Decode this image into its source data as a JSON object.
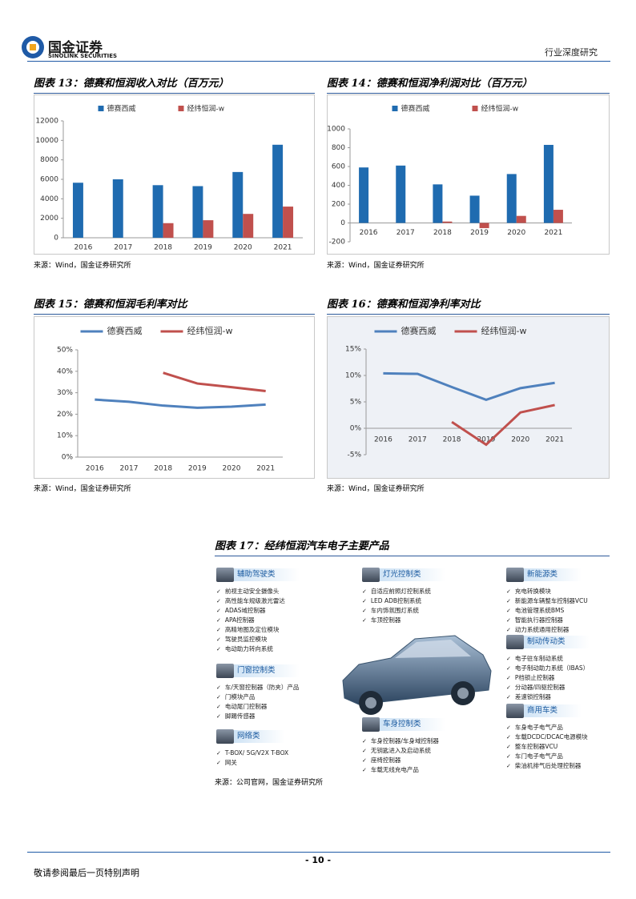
{
  "header": {
    "logo_cn": "国金证券",
    "logo_en": "SINOLINK SECURITIES",
    "report_type": "行业深度研究"
  },
  "chart_data": [
    {
      "type": "bar",
      "title": "图表 13：德赛和恒润收入对比（百万元）",
      "source": "来源：Wind，国金证券研究所",
      "categories": [
        "2016",
        "2017",
        "2018",
        "2019",
        "2020",
        "2021"
      ],
      "series": [
        {
          "name": "德赛西威",
          "color": "#1f6bb0",
          "values": [
            5650,
            6000,
            5400,
            5300,
            6750,
            9550
          ]
        },
        {
          "name": "经纬恒润-w",
          "color": "#c0504d",
          "values": [
            null,
            null,
            1500,
            1800,
            2450,
            3200
          ]
        }
      ],
      "ylim": [
        0,
        12000
      ],
      "yticks": [
        0,
        2000,
        4000,
        6000,
        8000,
        10000,
        12000
      ],
      "grid": false,
      "legend": "top"
    },
    {
      "type": "bar",
      "title": "图表 14：德赛和恒润净利润对比（百万元）",
      "source": "来源：Wind，国金证券研究所",
      "categories": [
        "2016",
        "2017",
        "2018",
        "2019",
        "2020",
        "2021"
      ],
      "series": [
        {
          "name": "德赛西威",
          "color": "#1f6bb0",
          "values": [
            590,
            610,
            410,
            290,
            520,
            830
          ]
        },
        {
          "name": "经纬恒润-w",
          "color": "#c0504d",
          "values": [
            null,
            null,
            15,
            -55,
            75,
            140
          ]
        }
      ],
      "ylim": [
        -200,
        1000
      ],
      "yticks": [
        -200,
        0,
        200,
        400,
        600,
        800,
        1000
      ],
      "grid": false,
      "legend": "top"
    },
    {
      "type": "line",
      "title": "图表 15：德赛和恒润毛利率对比",
      "source": "来源：Wind，国金证券研究所",
      "categories": [
        "2016",
        "2017",
        "2018",
        "2019",
        "2020",
        "2021"
      ],
      "series": [
        {
          "name": "德赛西威",
          "color": "#4f81bd",
          "values": [
            26.8,
            25.8,
            24.0,
            23.0,
            23.5,
            24.5
          ]
        },
        {
          "name": "经纬恒润-w",
          "color": "#c0504d",
          "values": [
            null,
            null,
            39.3,
            34.3,
            32.6,
            30.8
          ]
        }
      ],
      "ylim": [
        0,
        50
      ],
      "yticks": [
        {
          "value": 0,
          "label": "0%"
        },
        {
          "value": 10,
          "label": "10%"
        },
        {
          "value": 20,
          "label": "20%"
        },
        {
          "value": 30,
          "label": "30%"
        },
        {
          "value": 40,
          "label": "40%"
        },
        {
          "value": 50,
          "label": "50%"
        }
      ],
      "grid": false,
      "legend": "top"
    },
    {
      "type": "line",
      "title": "图表 16：德赛和恒润净利率对比",
      "source": "来源：Wind，国金证券研究所",
      "categories": [
        "2016",
        "2017",
        "2018",
        "2019",
        "2020",
        "2021"
      ],
      "series": [
        {
          "name": "德赛西威",
          "color": "#4f81bd",
          "values": [
            10.4,
            10.3,
            7.8,
            5.4,
            7.6,
            8.6
          ]
        },
        {
          "name": "经纬恒润-w",
          "color": "#c0504d",
          "values": [
            null,
            null,
            1.2,
            -3.1,
            3.0,
            4.4
          ]
        }
      ],
      "ylim": [
        -5,
        15
      ],
      "yticks": [
        {
          "value": -5,
          "label": "-5%"
        },
        {
          "value": 0,
          "label": "0%"
        },
        {
          "value": 5,
          "label": "5%"
        },
        {
          "value": 10,
          "label": "10%"
        },
        {
          "value": 15,
          "label": "15%"
        }
      ],
      "grid": false,
      "legend": "top"
    }
  ],
  "figure17": {
    "title": "图表 17：经纬恒润汽车电子主要产品",
    "source": "来源：公司官网，国金证券研究所",
    "groups": [
      {
        "name": "辅助驾驶类",
        "items": [
          "前视主动安全摄像头",
          "高性能车规级激光雷达",
          "ADAS域控制器",
          "APA控制器",
          "高精地图及定位模块",
          "驾驶员监控模块",
          "电动助力转向系统"
        ]
      },
      {
        "name": "门窗控制类",
        "items": [
          "车/天窗控制器（防夹）产品",
          "门模块产品",
          "电动尾门控制器",
          "脚踢传感器"
        ]
      },
      {
        "name": "网络类",
        "items": [
          "T-BOX/ 5G/V2X T-BOX",
          "网关"
        ]
      },
      {
        "name": "灯光控制类",
        "items": [
          "自适应前照灯控制系统",
          "LED ADB控制系统",
          "车内饰氛围灯系统",
          "车顶控制器"
        ]
      },
      {
        "name": "车身控制类",
        "items": [
          "车身控制器/车身域控制器",
          "无钥匙进入及启动系统",
          "座椅控制器",
          "车载无线充电产品"
        ]
      },
      {
        "name": "新能源类",
        "items": [
          "充电转换模块",
          "新能源车辆整车控制器VCU",
          "电池管理系统BMS",
          "智能执行器控制器",
          "动力系统通用控制器"
        ]
      },
      {
        "name": "制动传动类",
        "items": [
          "电子驻车制动系统",
          "电子制动助力系统（IBAS）",
          "P档锁止控制器",
          "分动器/四驱控制器",
          "差速锁控制器"
        ]
      },
      {
        "name": "商用车类",
        "items": [
          "车身电子电气产品",
          "车载DCDC/DCAC电源模块",
          "整车控制器VCU",
          "车门电子电气产品",
          "柴油机排气后处理控制器"
        ]
      }
    ]
  },
  "footer": {
    "page": "- 10 -",
    "disclaimer": "敬请参阅最后一页特别声明"
  }
}
